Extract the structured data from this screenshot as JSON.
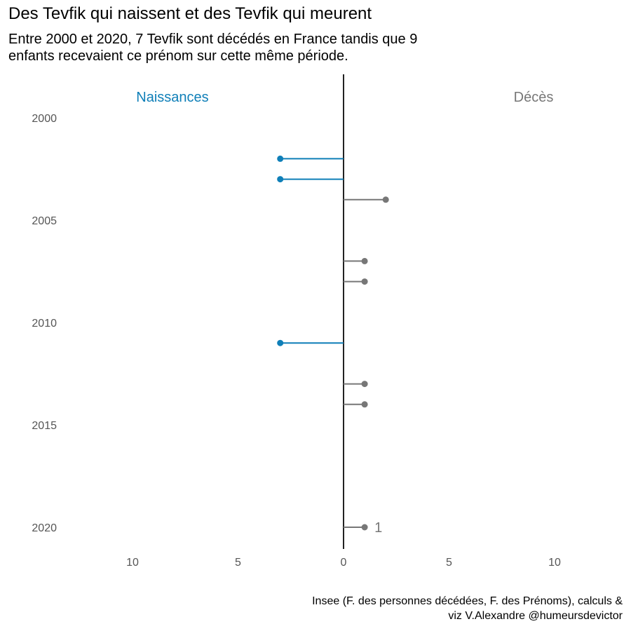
{
  "title": "Des Tevfik qui naissent et des Tevfik qui meurent",
  "subtitle": [
    "Entre 2000 et 2020, 7 Tevfik sont décédés en France tandis que 9",
    "enfants recevaient ce prénom sur cette même période."
  ],
  "caption": [
    "Insee (F. des personnes décédées, F. des Prénoms), calculs &",
    "viz V.Alexandre @humeursdevictor"
  ],
  "colors": {
    "births": "#0f7fb8",
    "deaths": "#777777",
    "axis": "#222222",
    "ticks": "#555555"
  },
  "chart_data": {
    "type": "lollipop",
    "orientation": "horizontal",
    "y_axis": {
      "range": [
        2000,
        2021
      ],
      "ticks": [
        2000,
        2005,
        2010,
        2015,
        2020
      ],
      "reversed": true
    },
    "x_axis": {
      "range": [
        -12,
        12
      ],
      "ticks": [
        -10,
        -5,
        0,
        5,
        10
      ],
      "tick_labels": [
        "10",
        "5",
        "0",
        "5",
        "10"
      ]
    },
    "grid": false,
    "series": [
      {
        "name": "Naissances",
        "side": "left",
        "points": [
          {
            "year": 2002,
            "value": 3
          },
          {
            "year": 2003,
            "value": 3
          },
          {
            "year": 2011,
            "value": 3
          }
        ]
      },
      {
        "name": "Décès",
        "side": "right",
        "points": [
          {
            "year": 2004,
            "value": 2
          },
          {
            "year": 2007,
            "value": 1
          },
          {
            "year": 2008,
            "value": 1
          },
          {
            "year": 2013,
            "value": 1
          },
          {
            "year": 2014,
            "value": 1
          },
          {
            "year": 2020,
            "value": 1
          }
        ]
      }
    ],
    "annotations": [
      {
        "year": 2020,
        "value": 1,
        "text": "1"
      }
    ]
  }
}
